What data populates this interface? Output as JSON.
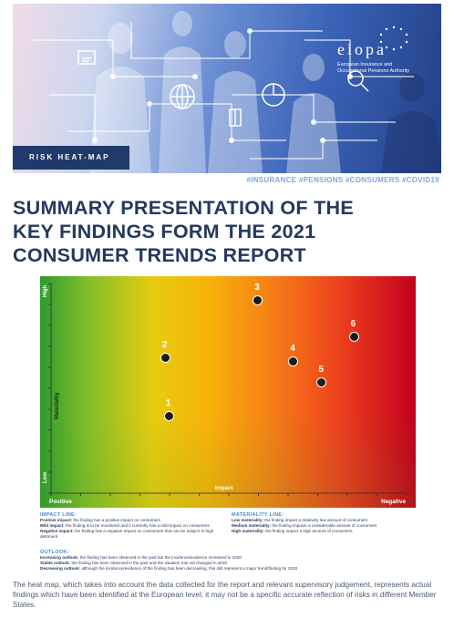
{
  "header": {
    "logo_word": "eiopa",
    "logo_line1": "European Insurance and",
    "logo_line2": "Occupational Pensions Authority",
    "badge": "RISK HEAT-MAP"
  },
  "hashtags": "#INSURANCE #PENSIONS #CONSUMERS #COVID19",
  "title": {
    "line1": "SUMMARY PRESENTATION OF THE",
    "line2": "KEY FINDINGS FORM THE 2021",
    "line3": "CONSUMER TRENDS REPORT"
  },
  "heatmap": {
    "axis_high": "High",
    "axis_low": "Low",
    "axis_materiality": "Materiality",
    "axis_impact": "Impact",
    "axis_positive": "Positive",
    "axis_negative": "Negative",
    "markers": [
      {
        "label": "1",
        "impact": 0.33,
        "materiality": 0.37
      },
      {
        "label": "2",
        "impact": 0.32,
        "materiality": 0.65
      },
      {
        "label": "3",
        "impact": 0.58,
        "materiality": 0.92
      },
      {
        "label": "4",
        "impact": 0.68,
        "materiality": 0.63
      },
      {
        "label": "5",
        "impact": 0.76,
        "materiality": 0.53
      },
      {
        "label": "6",
        "impact": 0.85,
        "materiality": 0.75
      }
    ]
  },
  "legend": {
    "impact_title": "IMPACT LINE:",
    "impact_items": [
      {
        "term": "Positive impact:",
        "desc": "the finding has a positive impact on consumers"
      },
      {
        "term": "Mild impact:",
        "desc": "the finding is to be monitored and it currently has a mild impact on consumers"
      },
      {
        "term": "Negative impact:",
        "desc": "the finding has a negative impact on consumers that can be subject to high detriment"
      }
    ],
    "materiality_title": "MATERIALITY LINE:",
    "materiality_items": [
      {
        "term": "Low materiality:",
        "desc": "the finding impact a relatively low amount of consumers"
      },
      {
        "term": "Medium materiality:",
        "desc": "the finding impacts a considerable amount of consumers"
      },
      {
        "term": "High materiality:",
        "desc": "the finding impact a high amount of consumers"
      }
    ],
    "outlook_title": "OUTLOOK:",
    "outlook_items": [
      {
        "term": "Increasing outlook:",
        "desc": "the finding has been observed in the past but the incidence/evidence increased in 2020"
      },
      {
        "term": "Stable outlook:",
        "desc": "the finding has been observed in the past and the situation has not changed in 2020"
      },
      {
        "term": "Decreasing outlook:",
        "desc": "although the incidence/evidence of the finding has been decreasing, this still represent a major trend/finding for 2020"
      }
    ]
  },
  "footer": "The heat map, which takes into account the data collected for the report and relevant supervisory judgement, represents actual findings which have been identified at the European level; it may not be a specific accurate reflection of risks in different Member States."
}
